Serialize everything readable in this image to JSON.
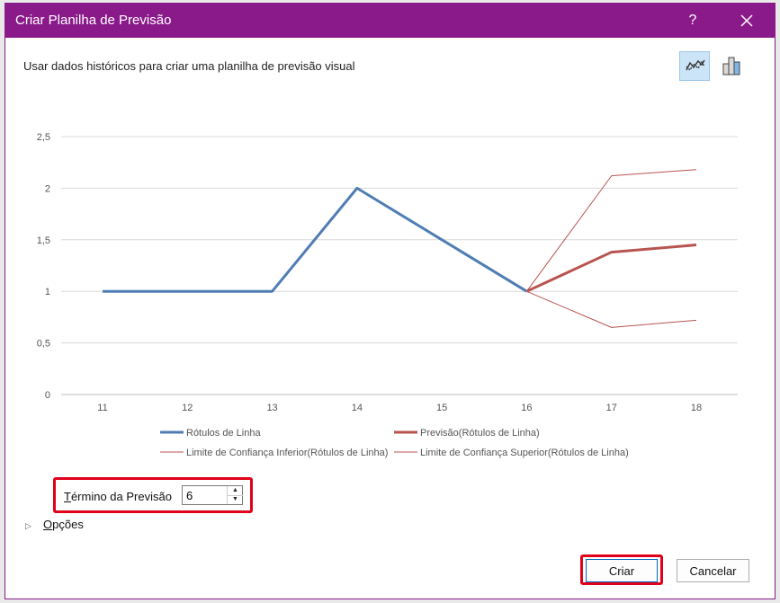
{
  "dialog": {
    "title": "Criar Planilha de Previsão",
    "help_label": "?",
    "subtitle": "Usar dados históricos para criar uma planilha de previsão visual",
    "accent_color": "#8a1a8a"
  },
  "chart_data": {
    "type": "line",
    "x": [
      11,
      12,
      13,
      14,
      15,
      16,
      17,
      18
    ],
    "ylim": [
      0,
      2.5
    ],
    "yticks": [
      "0",
      "0,5",
      "1",
      "1,5",
      "2",
      "2,5"
    ],
    "grid": true,
    "legend_position": "bottom",
    "series": [
      {
        "name": "Rótulos de Linha",
        "x": [
          11,
          12,
          13,
          14,
          15,
          16
        ],
        "values": [
          1,
          1,
          1,
          2,
          1.5,
          1
        ],
        "color": "#4f7db3"
      },
      {
        "name": "Previsão(Rótulos de Linha)",
        "x": [
          16,
          17,
          18
        ],
        "values": [
          1,
          1.38,
          1.45
        ],
        "color": "#b85450"
      },
      {
        "name": "Limite de Confiança Inferior(Rótulos de Linha)",
        "x": [
          16,
          17,
          18
        ],
        "values": [
          1,
          0.65,
          0.72
        ],
        "color": "#b85450"
      },
      {
        "name": "Limite de Confiança Superior(Rótulos de Linha)",
        "x": [
          16,
          17,
          18
        ],
        "values": [
          1,
          2.12,
          2.18
        ],
        "color": "#b85450"
      }
    ]
  },
  "forecast_end": {
    "label_first": "T",
    "label_rest": "érmino da Previsão",
    "value": "6"
  },
  "options": {
    "label_first": "O",
    "label_rest": "pções"
  },
  "buttons": {
    "create": "Criar",
    "cancel": "Cancelar"
  },
  "icons": {
    "line_view": "line-chart-icon",
    "column_view": "column-chart-icon",
    "close": "close-icon"
  }
}
